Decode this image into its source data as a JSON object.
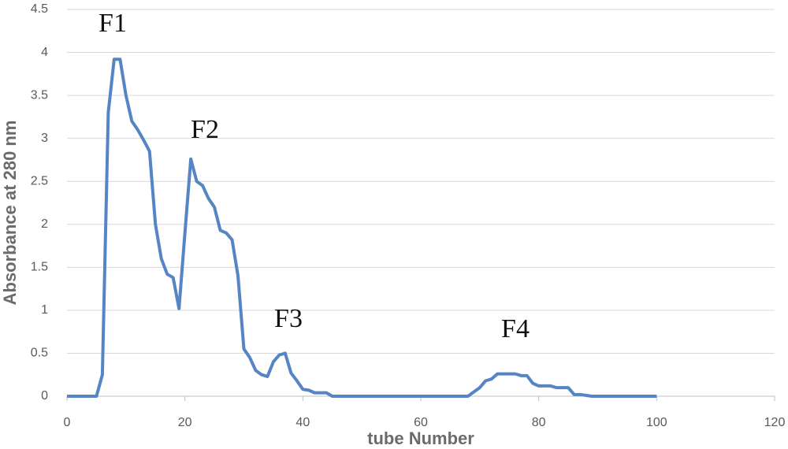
{
  "chart_data": {
    "type": "line",
    "x_label": "tube Number",
    "y_label": "Absorbance at 280 nm",
    "annotations": [
      "F1",
      "F2",
      "F3",
      "F4"
    ],
    "series": [
      {
        "name": "Absorbance",
        "color": "#5585c5",
        "x": [
          0,
          5,
          6,
          7,
          8,
          9,
          10,
          11,
          12,
          13,
          14,
          15,
          16,
          17,
          18,
          19,
          20,
          21,
          22,
          23,
          24,
          25,
          26,
          27,
          28,
          29,
          30,
          31,
          32,
          33,
          34,
          35,
          36,
          37,
          38,
          39,
          40,
          41,
          42,
          43,
          44,
          45,
          68,
          69,
          70,
          71,
          72,
          73,
          74,
          75,
          76,
          77,
          78,
          79,
          80,
          81,
          82,
          83,
          84,
          85,
          86,
          87,
          88,
          89,
          100
        ],
        "values": [
          0,
          0,
          0.25,
          3.3,
          3.92,
          3.92,
          3.5,
          3.2,
          3.1,
          2.98,
          2.85,
          2.0,
          1.6,
          1.42,
          1.38,
          1.02,
          1.9,
          2.76,
          2.5,
          2.45,
          2.3,
          2.2,
          1.93,
          1.9,
          1.82,
          1.4,
          0.55,
          0.45,
          0.3,
          0.25,
          0.23,
          0.4,
          0.48,
          0.5,
          0.27,
          0.18,
          0.08,
          0.07,
          0.04,
          0.04,
          0.04,
          0,
          0,
          0.05,
          0.1,
          0.18,
          0.2,
          0.26,
          0.26,
          0.26,
          0.26,
          0.24,
          0.24,
          0.15,
          0.12,
          0.12,
          0.12,
          0.1,
          0.1,
          0.1,
          0.02,
          0.02,
          0.01,
          0,
          0
        ]
      }
    ],
    "xlim": [
      0,
      120
    ],
    "xticks": [
      0,
      20,
      40,
      60,
      80,
      100,
      120
    ],
    "ylim": [
      0,
      4.5
    ],
    "yticks": [
      0,
      0.5,
      1,
      1.5,
      2,
      2.5,
      3,
      3.5,
      4,
      4.5
    ],
    "grid": true
  }
}
